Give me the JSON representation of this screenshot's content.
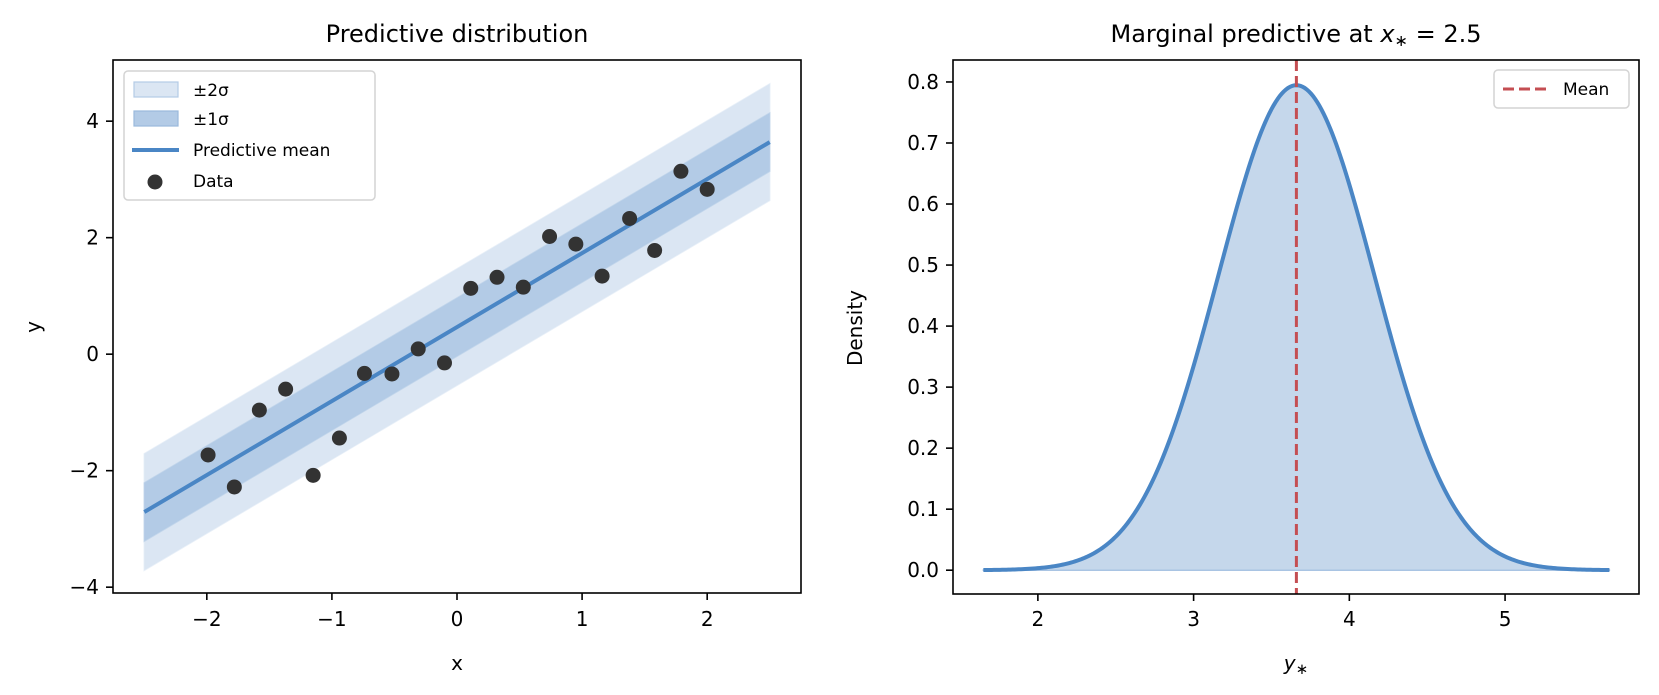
{
  "chart_data": [
    {
      "type": "line",
      "title": "Predictive distribution",
      "xlabel": "x",
      "ylabel": "y",
      "xlim": [
        -2.75,
        2.75
      ],
      "ylim": [
        -4.1,
        5.05
      ],
      "xticks": [
        -2,
        -1,
        0,
        1,
        2
      ],
      "xtick_labels": [
        "−2",
        "−1",
        "0",
        "1",
        "2"
      ],
      "yticks": [
        -4,
        -2,
        0,
        2,
        4
      ],
      "ytick_labels": [
        "−4",
        "−2",
        "0",
        "2",
        "4"
      ],
      "grid": false,
      "legend_position": "upper-left",
      "legend": [
        "±2σ",
        "±1σ",
        "Predictive mean",
        "Data"
      ],
      "mean_line": {
        "x_range": [
          -2.5,
          2.5
        ],
        "intercept": 0.465,
        "slope": 1.27
      },
      "predictive_sd": 0.5,
      "data_points": {
        "x": [
          -1.99,
          -1.78,
          -1.58,
          -1.37,
          -1.15,
          -0.94,
          -0.74,
          -0.52,
          -0.31,
          -0.1,
          0.11,
          0.32,
          0.53,
          0.74,
          0.95,
          1.16,
          1.38,
          1.58,
          1.79,
          2.0
        ],
        "y": [
          -1.73,
          -2.28,
          -0.96,
          -0.6,
          -2.08,
          -1.44,
          -0.33,
          -0.34,
          0.09,
          -0.15,
          1.13,
          1.32,
          1.15,
          2.02,
          1.89,
          1.34,
          2.33,
          1.78,
          3.14,
          2.83
        ]
      },
      "colors": {
        "band2": "#dbe6f3",
        "band1": "#b3cbe6",
        "mean": "#4a86c5",
        "data": "#333333"
      }
    },
    {
      "type": "area",
      "title_prefix": "Marginal predictive at ",
      "title_var": "x",
      "title_sub": "∗",
      "title_suffix": " = 2.5",
      "xlabel_var": "y",
      "xlabel_sub": "∗",
      "ylabel": "Density",
      "xlim": [
        1.455,
        5.86
      ],
      "ylim": [
        -0.039,
        0.836
      ],
      "xticks": [
        2,
        3,
        4,
        5
      ],
      "xtick_labels": [
        "2",
        "3",
        "4",
        "5"
      ],
      "yticks": [
        0.0,
        0.1,
        0.2,
        0.3,
        0.4,
        0.5,
        0.6,
        0.7,
        0.8
      ],
      "ytick_labels": [
        "0.0",
        "0.1",
        "0.2",
        "0.3",
        "0.4",
        "0.5",
        "0.6",
        "0.7",
        "0.8"
      ],
      "grid": false,
      "legend_position": "upper-right",
      "legend": [
        "Mean"
      ],
      "distribution": {
        "kind": "normal",
        "mean": 3.66,
        "sd": 0.502,
        "x_range": [
          1.65,
          5.67
        ],
        "peak_density": 0.795
      },
      "colors": {
        "fill": "#c5d7eb",
        "curve": "#4a86c5",
        "mean_line": "#c44e52"
      }
    }
  ]
}
